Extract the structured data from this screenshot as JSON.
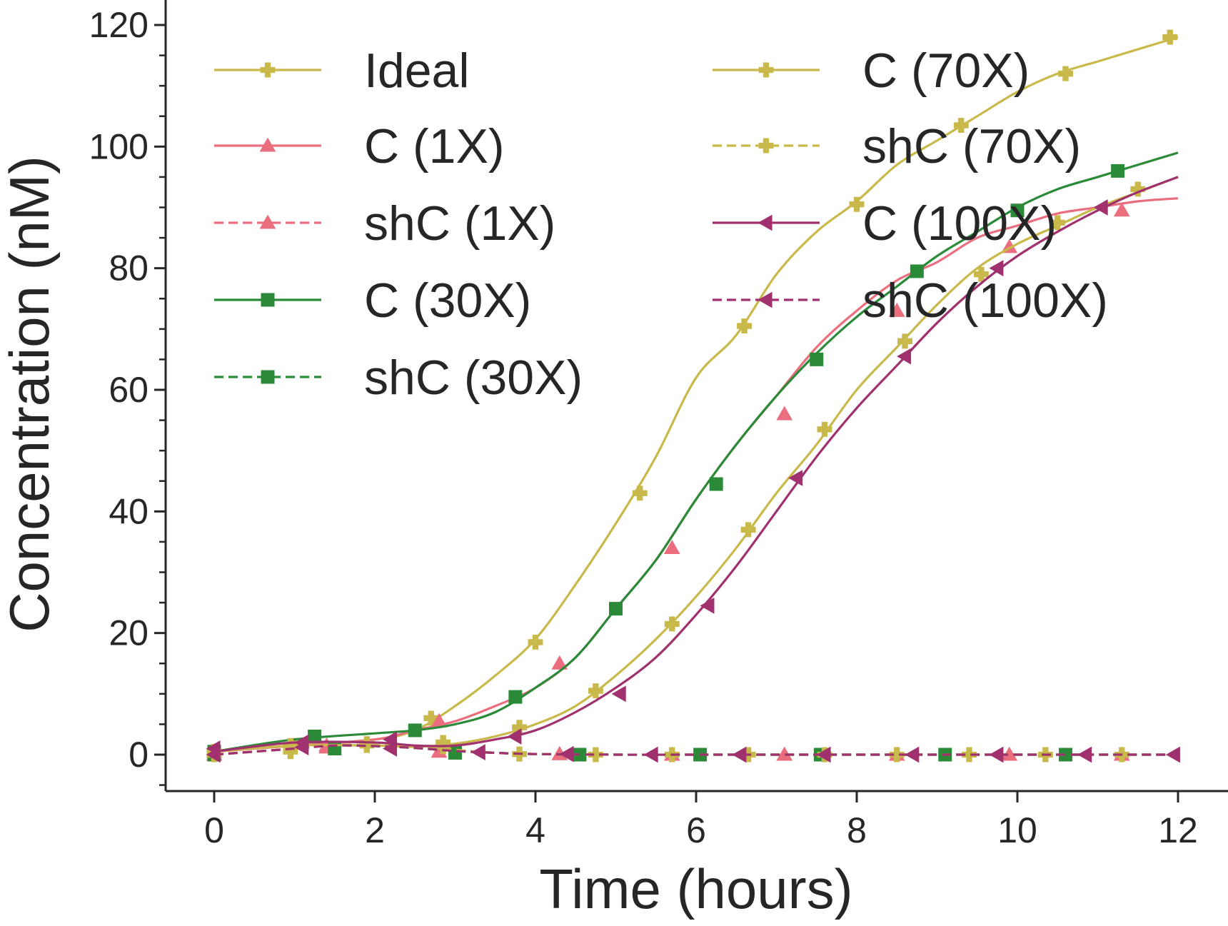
{
  "chart_data": {
    "type": "line",
    "title": "",
    "xlabel": "Time (hours)",
    "ylabel": "Concentration (nM)",
    "xlim": [
      -0.6,
      12.6
    ],
    "ylim": [
      -6,
      124
    ],
    "x_ticks": [
      0,
      2,
      4,
      6,
      8,
      10,
      12
    ],
    "y_ticks": [
      0,
      20,
      40,
      60,
      80,
      100,
      120
    ],
    "y_minor_step": 5,
    "grid": false,
    "legend_placement": "top-left, two columns",
    "series": [
      {
        "name": "Ideal",
        "color": "#c9b94a",
        "dash": "solid",
        "marker": "plus",
        "x": [
          0,
          1,
          2,
          2.5,
          3,
          3.5,
          4,
          4.5,
          5,
          5.5,
          6,
          6.5,
          7,
          7.5,
          8,
          8.5,
          9,
          9.5,
          10,
          10.5,
          11,
          11.5,
          12
        ],
        "y": [
          0.5,
          1.5,
          2.5,
          4,
          8,
          13,
          19,
          28,
          38,
          49,
          62,
          69,
          79,
          86,
          91,
          97,
          101,
          105,
          109,
          112,
          114,
          116,
          118
        ],
        "marker_x": [
          0,
          1,
          2.7,
          4,
          5.3,
          6.6,
          8,
          9.3,
          10.6,
          11.9
        ],
        "marker_y": [
          0.5,
          1.5,
          6,
          18.5,
          43,
          70.5,
          90.5,
          103.5,
          112,
          118
        ]
      },
      {
        "name": "C (1X)",
        "color": "#ea6e7e",
        "dash": "solid",
        "marker": "triangle-up",
        "x": [
          0,
          1,
          2,
          2.5,
          3,
          3.5,
          4,
          4.5,
          5,
          5.5,
          6,
          6.5,
          7,
          7.5,
          8,
          8.5,
          9,
          9.5,
          10,
          10.5,
          11,
          11.5,
          12
        ],
        "y": [
          0.5,
          1.5,
          2.5,
          4,
          5.5,
          8,
          11,
          16,
          24,
          32,
          42,
          51,
          59,
          67,
          73,
          78,
          81,
          85,
          87,
          89,
          90,
          91,
          91.5
        ],
        "marker_x": [
          0,
          1.4,
          2.8,
          4.3,
          5.7,
          7.1,
          8.5,
          9.9,
          11.3
        ],
        "marker_y": [
          0.5,
          1.5,
          5.5,
          15,
          34,
          56,
          73,
          83.5,
          89.5
        ]
      },
      {
        "name": "shC (1X)",
        "color": "#ea6e7e",
        "dash": "dashed",
        "marker": "triangle-up",
        "x": [
          0,
          1,
          1.5,
          2,
          2.5,
          3,
          3.5,
          4,
          5,
          6,
          7,
          8,
          9,
          10,
          11,
          12
        ],
        "y": [
          0,
          1,
          1.6,
          1.5,
          1.2,
          0.7,
          0.3,
          0.1,
          0,
          0,
          0,
          0,
          0,
          0,
          0,
          0
        ],
        "marker_x": [
          0,
          1.4,
          2.8,
          4.3,
          5.7,
          7.1,
          8.5,
          9.9,
          11.3
        ],
        "marker_y": [
          0,
          1.2,
          0.5,
          0.1,
          0,
          0,
          0,
          0,
          0
        ]
      },
      {
        "name": "C (30X)",
        "color": "#2a8a37",
        "dash": "solid",
        "marker": "square",
        "x": [
          0,
          1,
          2,
          2.5,
          3,
          3.5,
          4,
          4.5,
          5,
          5.5,
          6,
          6.5,
          7,
          7.5,
          8,
          8.5,
          9,
          9.5,
          10,
          10.5,
          11,
          11.5,
          12
        ],
        "y": [
          0.5,
          2.5,
          3.5,
          4,
          5,
          7,
          11,
          16,
          24,
          32,
          42,
          51,
          59,
          66,
          72,
          77,
          82,
          86,
          90,
          93,
          95,
          97,
          99
        ],
        "marker_x": [
          0,
          1.25,
          2.5,
          3.75,
          5,
          6.25,
          7.5,
          8.75,
          10,
          11.25
        ],
        "marker_y": [
          0.5,
          3,
          4,
          9.5,
          24,
          44.5,
          65,
          79.5,
          89.5,
          96
        ]
      },
      {
        "name": "shC (30X)",
        "color": "#2a8a37",
        "dash": "dashed",
        "marker": "square",
        "x": [
          0,
          1,
          1.5,
          2,
          2.5,
          3,
          3.5,
          4,
          5,
          6,
          7,
          8,
          9,
          10,
          11,
          12
        ],
        "y": [
          0,
          1,
          1.5,
          1.4,
          1.1,
          0.6,
          0.3,
          0.1,
          0,
          0,
          0,
          0,
          0,
          0,
          0,
          0
        ],
        "marker_x": [
          0,
          1.5,
          3,
          4.55,
          6.05,
          7.55,
          9.1,
          10.6
        ],
        "marker_y": [
          0,
          1,
          0.3,
          0,
          0,
          0,
          0,
          0
        ]
      },
      {
        "name": "C (70X)",
        "color": "#c9b94a",
        "dash": "solid",
        "marker": "plus",
        "x": [
          0,
          1,
          2,
          2.5,
          3,
          3.5,
          4,
          4.5,
          5,
          5.5,
          6,
          6.5,
          7,
          7.5,
          8,
          8.5,
          9,
          9.5,
          10,
          10.5,
          11,
          11.5,
          12
        ],
        "y": [
          0.5,
          1.5,
          1.5,
          1.3,
          1.8,
          3,
          5,
          8,
          13,
          19,
          26,
          34,
          43,
          51,
          60,
          67,
          74,
          80,
          84,
          87,
          90,
          92.5,
          95
        ],
        "marker_x": [
          0,
          0.95,
          1.9,
          2.85,
          3.8,
          4.75,
          5.7,
          6.65,
          7.6,
          8.6,
          9.55,
          10.5,
          11.5
        ],
        "marker_y": [
          0.5,
          1.5,
          1.5,
          2,
          4.5,
          10.5,
          21.5,
          37,
          53.5,
          68,
          79,
          87.5,
          93
        ]
      },
      {
        "name": "shC (70X)",
        "color": "#c9b94a",
        "dash": "dashed",
        "marker": "plus",
        "x": [
          0,
          1,
          1.5,
          2,
          2.5,
          3,
          3.5,
          4,
          5,
          6,
          7,
          8,
          9,
          10,
          11,
          12
        ],
        "y": [
          0,
          1,
          1.6,
          1.6,
          1.3,
          0.8,
          0.3,
          0.1,
          0,
          0,
          0,
          0,
          0,
          0,
          0,
          0
        ],
        "marker_x": [
          0,
          0.95,
          1.9,
          2.85,
          3.8,
          4.75,
          5.7,
          6.65,
          7.6,
          8.5,
          9.4,
          10.35,
          11.3
        ],
        "marker_y": [
          0,
          0.5,
          1.8,
          1.3,
          0.1,
          0,
          0,
          0,
          0,
          0,
          0,
          0,
          0
        ]
      },
      {
        "name": "C (100X)",
        "color": "#a0316e",
        "dash": "solid",
        "marker": "triangle-left",
        "x": [
          0,
          1,
          2,
          2.5,
          3,
          3.5,
          4,
          4.5,
          5,
          5.5,
          6,
          6.5,
          7,
          7.5,
          8,
          8.5,
          9,
          9.5,
          10,
          10.5,
          11,
          11.5,
          12
        ],
        "y": [
          0.5,
          2,
          2,
          1.5,
          1.5,
          2.5,
          4,
          7,
          11,
          16,
          23,
          31,
          40,
          49,
          57,
          64,
          71,
          77,
          82,
          86,
          89.5,
          92.5,
          95
        ],
        "marker_x": [
          0,
          1.1,
          2.2,
          3.75,
          5.05,
          6.15,
          7.25,
          8.6,
          9.75,
          11.05
        ],
        "marker_y": [
          1,
          2,
          2.5,
          3,
          10,
          24.5,
          45.5,
          65.5,
          80,
          90
        ]
      },
      {
        "name": "shC (100X)",
        "color": "#a0316e",
        "dash": "dashed",
        "marker": "triangle-left",
        "x": [
          0,
          1,
          1.5,
          2,
          2.5,
          3,
          3.5,
          4,
          5,
          6,
          7,
          8,
          9,
          10,
          11,
          12
        ],
        "y": [
          0,
          1,
          1.5,
          1.4,
          1.1,
          0.6,
          0.3,
          0.1,
          0,
          0,
          0,
          0,
          0,
          0,
          0,
          0
        ],
        "marker_x": [
          0,
          1.1,
          2.2,
          3.3,
          4.4,
          5.45,
          6.55,
          7.6,
          8.7,
          9.75,
          10.85,
          11.95
        ],
        "marker_y": [
          0,
          1.2,
          1,
          0.4,
          0.1,
          0,
          0,
          0,
          0,
          0,
          0,
          0
        ]
      }
    ]
  }
}
